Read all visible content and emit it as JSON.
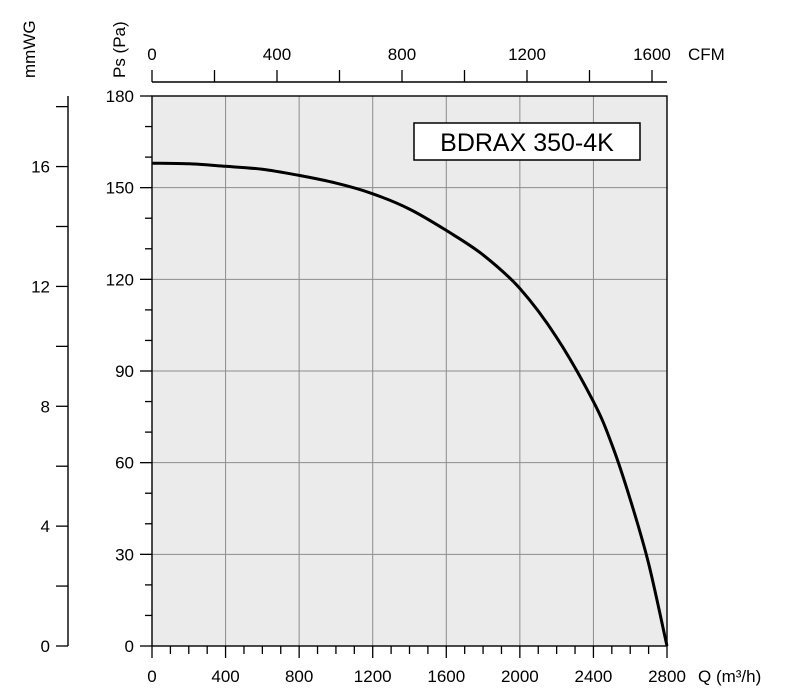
{
  "chart_data": {
    "type": "line",
    "title": "BDRAX 350-4K",
    "xlabel": "Q (m³/h)",
    "ylabel": "Ps (Pa)",
    "secondary_x_label": "CFM",
    "secondary_y_label": "mmWG",
    "xlim": [
      0,
      2800
    ],
    "ylim": [
      0,
      180
    ],
    "x_ticks": [
      "0",
      "400",
      "800",
      "1200",
      "1600",
      "2000",
      "2400",
      "2800"
    ],
    "y_ticks": [
      "0",
      "30",
      "60",
      "90",
      "120",
      "150",
      "180"
    ],
    "cfm_ticks": [
      "0",
      "400",
      "800",
      "1200",
      "1600"
    ],
    "cfm_tick_values": [
      0,
      400,
      800,
      1200,
      1600
    ],
    "mmwg_ticks": [
      "0",
      "4",
      "8",
      "12",
      "16"
    ],
    "mmwg_tick_values": [
      0,
      4,
      8,
      12,
      16
    ],
    "grid": true,
    "series": [
      {
        "x": [
          0,
          200,
          400,
          600,
          800,
          1000,
          1200,
          1400,
          1600,
          1800,
          2000,
          2200,
          2400,
          2500,
          2600,
          2700,
          2800
        ],
        "values": [
          158,
          157.8,
          157,
          156,
          154,
          151.5,
          148,
          143,
          136,
          128,
          117,
          101,
          80,
          66,
          48,
          27,
          0
        ]
      }
    ]
  }
}
